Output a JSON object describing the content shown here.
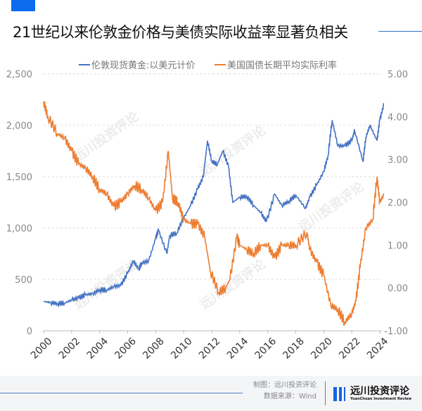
{
  "title": "21世纪以来伦敦金价格与美债实际收益率显著负相关",
  "footer": {
    "made_by": "制图：远川投资评论",
    "source": "数据来源：Wind",
    "logo_cn": "远川投资评论",
    "logo_en": "YuanChuan Investment Review",
    "watermark": "远川投资评论"
  },
  "chart_data": {
    "type": "line",
    "x_ticks": [
      "2000",
      "2002",
      "2004",
      "2006",
      "2008",
      "2010",
      "2012",
      "2014",
      "2016",
      "2018",
      "2020",
      "2022",
      "2024"
    ],
    "xlim": [
      2000,
      2024.4
    ],
    "y_left": {
      "lim": [
        0,
        2500
      ],
      "ticks": [
        "0",
        "500",
        "1,000",
        "1,500",
        "2,000",
        "2,500"
      ]
    },
    "y_right": {
      "lim": [
        -1,
        5
      ],
      "ticks": [
        "-1.00",
        "0.00",
        "1.00",
        "2.00",
        "3.00",
        "4.00",
        "5.00"
      ]
    },
    "grid": true,
    "legend": "top",
    "series": [
      {
        "name": "伦敦现货黄金:以美元计价",
        "axis": "left",
        "color": "#4472c4",
        "x": [
          2000,
          2000.5,
          2001,
          2001.5,
          2002,
          2002.5,
          2003,
          2003.5,
          2004,
          2004.5,
          2005,
          2005.5,
          2006,
          2006.4,
          2006.8,
          2007,
          2007.5,
          2008,
          2008.2,
          2008.8,
          2009,
          2009.5,
          2010,
          2010.5,
          2011,
          2011.4,
          2011.7,
          2012,
          2012.4,
          2012.8,
          2013.2,
          2013.5,
          2014,
          2014.5,
          2015,
          2015.5,
          2015.9,
          2016.5,
          2017,
          2017.5,
          2018,
          2018.7,
          2019,
          2019.5,
          2020,
          2020.3,
          2020.6,
          2021,
          2021.5,
          2022,
          2022.2,
          2022.8,
          2023,
          2023.3,
          2023.8,
          2024,
          2024.3
        ],
        "values": [
          285,
          275,
          265,
          270,
          300,
          320,
          350,
          360,
          400,
          395,
          430,
          440,
          560,
          680,
          600,
          660,
          680,
          900,
          980,
          750,
          930,
          950,
          1100,
          1220,
          1380,
          1500,
          1850,
          1650,
          1620,
          1750,
          1600,
          1250,
          1300,
          1310,
          1220,
          1150,
          1060,
          1330,
          1220,
          1260,
          1320,
          1190,
          1300,
          1420,
          1550,
          1700,
          2050,
          1800,
          1800,
          1850,
          1950,
          1650,
          1880,
          2000,
          1850,
          2050,
          2210
        ]
      },
      {
        "name": "美国国债长期平均实际利率",
        "axis": "right",
        "color": "#ed7d31",
        "x": [
          2000,
          2000.3,
          2001,
          2001.5,
          2002,
          2002.5,
          2003,
          2003.5,
          2004,
          2004.5,
          2005,
          2005.5,
          2006,
          2006.5,
          2007,
          2007.5,
          2008,
          2008.5,
          2008.9,
          2009.2,
          2009.6,
          2010,
          2010.5,
          2011,
          2011.5,
          2011.9,
          2012.5,
          2013,
          2013.3,
          2013.8,
          2014,
          2014.5,
          2015,
          2015.5,
          2016,
          2016.5,
          2017,
          2017.5,
          2018,
          2018.8,
          2019,
          2019.5,
          2020,
          2020.5,
          2021,
          2021.5,
          2022,
          2022.3,
          2022.6,
          2023,
          2023.5,
          2023.8,
          2024,
          2024.3
        ],
        "values": [
          4.35,
          4.0,
          3.6,
          3.5,
          3.2,
          2.9,
          2.8,
          2.6,
          2.3,
          2.2,
          1.9,
          2.0,
          2.2,
          2.4,
          2.3,
          2.1,
          1.8,
          2.0,
          3.2,
          2.1,
          2.0,
          1.6,
          1.5,
          1.5,
          1.2,
          0.4,
          -0.1,
          0.0,
          0.2,
          1.2,
          1.0,
          0.9,
          0.8,
          1.0,
          1.0,
          0.7,
          1.0,
          1.0,
          1.0,
          1.3,
          0.9,
          0.6,
          0.3,
          -0.4,
          -0.5,
          -0.8,
          -0.6,
          -0.3,
          0.5,
          1.4,
          1.6,
          2.6,
          2.0,
          2.2
        ]
      }
    ]
  }
}
